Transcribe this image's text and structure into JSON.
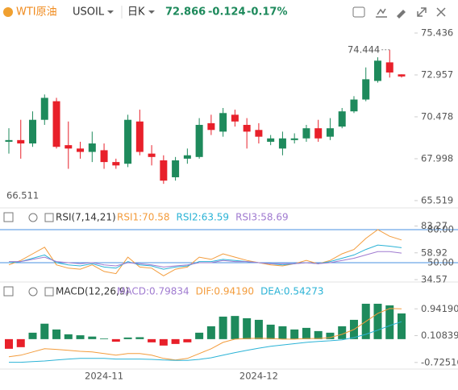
{
  "header": {
    "title": "WTI原油",
    "symbol": "USOIL",
    "period": "日K",
    "price": "72.866",
    "change": "-0.124",
    "change_pct": "-0.17%"
  },
  "chart_data": [
    {
      "type": "candlestick",
      "categories": [
        null,
        null,
        null,
        null,
        null,
        null,
        null,
        null,
        "2024-11",
        null,
        null,
        null,
        null,
        null,
        null,
        null,
        null,
        null,
        null,
        null,
        null,
        "2024-12",
        null,
        null,
        null,
        null,
        null,
        null,
        null,
        null,
        null,
        null,
        null,
        null
      ],
      "open": [
        69.0,
        69.1,
        68.9,
        70.3,
        71.4,
        68.8,
        68.6,
        68.4,
        68.5,
        67.8,
        67.7,
        70.2,
        68.3,
        67.9,
        66.9,
        68.0,
        68.1,
        70.1,
        69.6,
        70.6,
        70.0,
        69.7,
        69.0,
        68.6,
        69.1,
        69.2,
        69.8,
        69.3,
        69.9,
        70.8,
        71.5,
        72.6,
        73.7,
        72.99
      ],
      "high": [
        69.8,
        70.3,
        70.8,
        71.8,
        71.6,
        70.2,
        69.0,
        69.6,
        68.9,
        68.0,
        70.6,
        70.9,
        68.8,
        68.2,
        68.1,
        68.6,
        70.4,
        70.6,
        71.0,
        70.9,
        70.4,
        70.1,
        69.4,
        69.6,
        69.5,
        70.0,
        70.3,
        70.4,
        71.0,
        71.7,
        73.4,
        74.0,
        74.444,
        72.99
      ],
      "low": [
        68.3,
        68.0,
        68.7,
        70.0,
        68.6,
        67.4,
        68.0,
        67.8,
        67.4,
        67.4,
        67.5,
        68.2,
        67.6,
        66.511,
        66.7,
        67.7,
        68.0,
        69.4,
        69.3,
        69.9,
        68.6,
        68.9,
        68.8,
        68.2,
        68.9,
        69.0,
        69.0,
        69.1,
        69.8,
        70.7,
        71.4,
        72.5,
        72.8,
        72.8
      ],
      "close": [
        69.1,
        68.9,
        70.3,
        71.6,
        68.7,
        68.6,
        68.4,
        68.9,
        67.8,
        67.6,
        70.3,
        68.4,
        68.1,
        66.7,
        67.9,
        68.2,
        70.0,
        69.7,
        70.7,
        70.2,
        69.6,
        69.3,
        69.2,
        69.2,
        69.2,
        69.8,
        69.2,
        69.8,
        70.8,
        71.5,
        72.7,
        73.8,
        73.1,
        72.866
      ],
      "up_color": "#1e8a5c",
      "down_color": "#e8202a",
      "max_label": "74.444",
      "min_label": "66.511",
      "ylim": [
        65.23,
        75.96
      ],
      "yticks": [
        65.519,
        67.998,
        70.478,
        72.957,
        75.436
      ]
    },
    {
      "type": "line",
      "title": "RSI(7,14,21)",
      "series": [
        {
          "name": "RSI1:70.58",
          "color": "#f39c3c",
          "values": [
            48,
            52,
            58,
            64,
            48,
            45,
            44,
            48,
            42,
            40,
            55,
            46,
            45,
            38,
            44,
            46,
            55,
            53,
            58,
            55,
            52,
            50,
            48,
            47,
            49,
            52,
            49,
            52,
            58,
            62,
            72,
            80,
            74,
            70.58
          ]
        },
        {
          "name": "RSI2:63.59",
          "color": "#2bb3d6",
          "values": [
            50,
            51,
            54,
            57,
            50,
            48,
            47,
            49,
            46,
            45,
            51,
            48,
            47,
            44,
            46,
            47,
            51,
            51,
            53,
            52,
            51,
            50,
            49,
            48,
            49,
            50,
            49,
            51,
            54,
            57,
            62,
            66,
            65,
            63.59
          ]
        },
        {
          "name": "RSI3:58.69",
          "color": "#a07bd0",
          "values": [
            51,
            51,
            53,
            55,
            51,
            50,
            49,
            50,
            48,
            47,
            50,
            49,
            48,
            46,
            47,
            48,
            50,
            50,
            52,
            51,
            51,
            50,
            49,
            49,
            49,
            50,
            49,
            50,
            52,
            54,
            57,
            60,
            60,
            58.69
          ]
        }
      ],
      "hlines": [
        {
          "value": 80,
          "label": "80.00"
        },
        {
          "value": 50,
          "label": "50.00"
        }
      ],
      "hline_color": "#4a90e2",
      "ylim": [
        32.4,
        96.8
      ],
      "yticks": [
        83.27,
        58.92,
        34.57
      ]
    },
    {
      "type": "macd",
      "title": "MACD(12,26,9)",
      "series": [
        {
          "name": "MACD:0.79834",
          "color": "#a07bd0",
          "values": [
            -0.3,
            -0.25,
            0.2,
            0.48,
            0.3,
            0.15,
            0.12,
            0.08,
            0.02,
            -0.08,
            0.05,
            0.06,
            -0.1,
            -0.2,
            -0.15,
            -0.1,
            0.2,
            0.4,
            0.7,
            0.72,
            0.65,
            0.6,
            0.45,
            0.4,
            0.3,
            0.35,
            0.25,
            0.2,
            0.4,
            0.6,
            1.1,
            1.1,
            1.05,
            0.79834
          ]
        },
        {
          "name": "DIF:0.94190",
          "color": "#f39c3c",
          "values": [
            -0.55,
            -0.5,
            -0.4,
            -0.3,
            -0.32,
            -0.35,
            -0.38,
            -0.4,
            -0.45,
            -0.5,
            -0.45,
            -0.45,
            -0.5,
            -0.6,
            -0.65,
            -0.6,
            -0.45,
            -0.3,
            -0.1,
            0.0,
            0.02,
            0.03,
            0.02,
            0.0,
            0.0,
            0.02,
            0.02,
            0.05,
            0.15,
            0.3,
            0.55,
            0.8,
            0.95,
            0.9419
          ]
        },
        {
          "name": "DEA:0.54273",
          "color": "#2bb3d6",
          "values": [
            -0.72,
            -0.72,
            -0.7,
            -0.68,
            -0.65,
            -0.62,
            -0.6,
            -0.6,
            -0.6,
            -0.62,
            -0.62,
            -0.62,
            -0.63,
            -0.65,
            -0.66,
            -0.66,
            -0.63,
            -0.58,
            -0.5,
            -0.42,
            -0.35,
            -0.28,
            -0.22,
            -0.18,
            -0.14,
            -0.1,
            -0.07,
            -0.05,
            -0.02,
            0.05,
            0.15,
            0.28,
            0.42,
            0.54273
          ]
        }
      ],
      "up_color": "#1e8a5c",
      "down_color": "#e8202a",
      "ylim": [
        -0.93,
        1.6
      ],
      "yticks": [
        {
          "value": 0.9419,
          "label": "0.94190"
        },
        0.10839,
        -0.72516
      ]
    }
  ]
}
